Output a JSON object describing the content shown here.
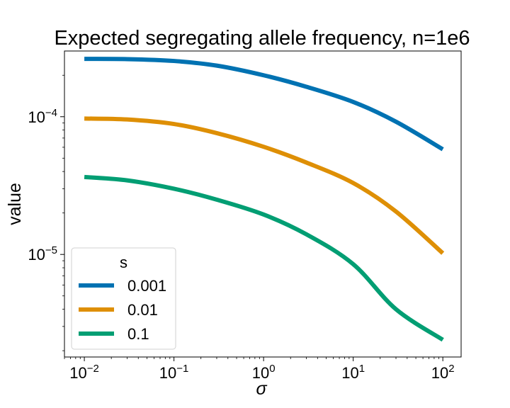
{
  "chart_data": {
    "type": "line",
    "title": "Expected segregating allele frequency, n=1e6",
    "xlabel": "σ",
    "ylabel": "value",
    "xscale": "log",
    "yscale": "log",
    "xlim": [
      0.006,
      160
    ],
    "ylim": [
      1.8e-06,
      0.0003
    ],
    "grid": false,
    "x_ticks": [
      {
        "base": "10",
        "exp": "−2",
        "value": 0.01
      },
      {
        "base": "10",
        "exp": "−1",
        "value": 0.1
      },
      {
        "base": "10",
        "exp": "0",
        "value": 1
      },
      {
        "base": "10",
        "exp": "1",
        "value": 10
      },
      {
        "base": "10",
        "exp": "2",
        "value": 100
      }
    ],
    "y_ticks": [
      {
        "base": "10",
        "exp": "−5",
        "value": 1e-05
      },
      {
        "base": "10",
        "exp": "−4",
        "value": 0.0001
      }
    ],
    "legend": {
      "title": "s",
      "placement": "lower-left"
    },
    "x": [
      0.01,
      0.03,
      0.1,
      0.3,
      1,
      3,
      10,
      30,
      100
    ],
    "series": [
      {
        "name": "0.001",
        "color": "#0072b2",
        "values": [
          0.000263,
          0.000262,
          0.000254,
          0.000235,
          0.0002,
          0.000165,
          0.000128,
          9.2e-05,
          5.8e-05
        ]
      },
      {
        "name": "0.01",
        "color": "#de8f05",
        "values": [
          9.7e-05,
          9.55e-05,
          8.85e-05,
          7.6e-05,
          6.05e-05,
          4.65e-05,
          3.3e-05,
          2.05e-05,
          1.02e-05
        ]
      },
      {
        "name": "0.1",
        "color": "#029e73",
        "values": [
          3.65e-05,
          3.45e-05,
          3e-05,
          2.5e-05,
          1.95e-05,
          1.4e-05,
          8.5e-06,
          4e-06,
          2.4e-06
        ]
      }
    ]
  }
}
